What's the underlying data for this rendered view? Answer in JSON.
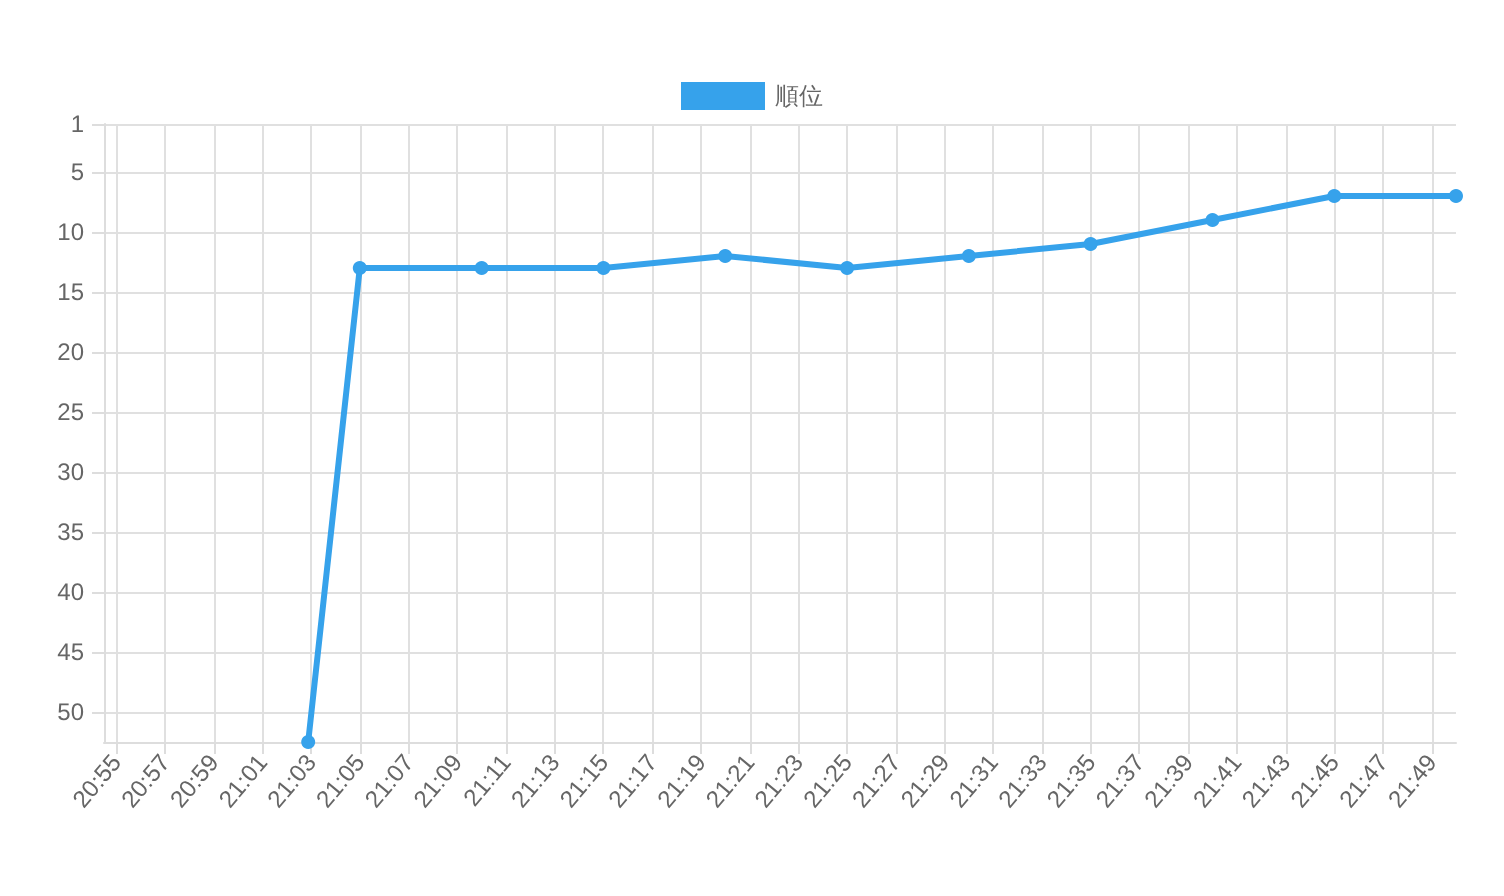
{
  "chart_data": {
    "type": "line",
    "x": [
      21.048,
      21.0833,
      21.1667,
      21.25,
      21.3333,
      21.4167,
      21.5,
      21.5833,
      21.6667,
      21.75,
      21.8333
    ],
    "series": [
      {
        "name": "順位",
        "color": "#36a2eb",
        "values": [
          52.5,
          13,
          13,
          13,
          12,
          13,
          12,
          11,
          9,
          7,
          7
        ]
      }
    ],
    "xlim": [
      20.9083,
      21.8333
    ],
    "xticks": [
      {
        "value": 20.9167,
        "label": "20:55"
      },
      {
        "value": 20.95,
        "label": "20:57"
      },
      {
        "value": 20.9833,
        "label": "20:59"
      },
      {
        "value": 21.0167,
        "label": "21:01"
      },
      {
        "value": 21.05,
        "label": "21:03"
      },
      {
        "value": 21.0833,
        "label": "21:05"
      },
      {
        "value": 21.1167,
        "label": "21:07"
      },
      {
        "value": 21.15,
        "label": "21:09"
      },
      {
        "value": 21.1833,
        "label": "21:11"
      },
      {
        "value": 21.2167,
        "label": "21:13"
      },
      {
        "value": 21.25,
        "label": "21:15"
      },
      {
        "value": 21.2833,
        "label": "21:17"
      },
      {
        "value": 21.3167,
        "label": "21:19"
      },
      {
        "value": 21.35,
        "label": "21:21"
      },
      {
        "value": 21.3833,
        "label": "21:23"
      },
      {
        "value": 21.4167,
        "label": "21:25"
      },
      {
        "value": 21.45,
        "label": "21:27"
      },
      {
        "value": 21.4833,
        "label": "21:29"
      },
      {
        "value": 21.5167,
        "label": "21:31"
      },
      {
        "value": 21.55,
        "label": "21:33"
      },
      {
        "value": 21.5833,
        "label": "21:35"
      },
      {
        "value": 21.6167,
        "label": "21:37"
      },
      {
        "value": 21.65,
        "label": "21:39"
      },
      {
        "value": 21.6833,
        "label": "21:41"
      },
      {
        "value": 21.7167,
        "label": "21:43"
      },
      {
        "value": 21.75,
        "label": "21:45"
      },
      {
        "value": 21.7833,
        "label": "21:47"
      },
      {
        "value": 21.8167,
        "label": "21:49"
      }
    ],
    "ylim": [
      52.5,
      1
    ],
    "yticks": [
      1,
      5,
      10,
      15,
      20,
      25,
      30,
      35,
      40,
      45,
      50
    ],
    "grid": true,
    "legend": "top",
    "marker": "circle",
    "line_style": "solid"
  }
}
